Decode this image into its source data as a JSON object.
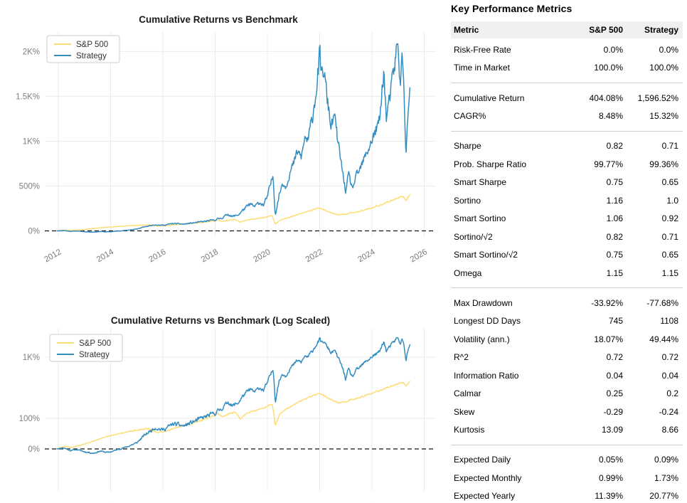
{
  "panel": {
    "title": "Key Performance Metrics",
    "columns": [
      "Metric",
      "S&P 500",
      "Strategy"
    ],
    "sections": [
      {
        "rows": [
          {
            "label": "Risk-Free Rate",
            "sp500": "0.0%",
            "strategy": "0.0%"
          },
          {
            "label": "Time in Market",
            "sp500": "100.0%",
            "strategy": "100.0%"
          }
        ]
      },
      {
        "rows": [
          {
            "label": "Cumulative Return",
            "sp500": "404.08%",
            "strategy": "1,596.52%"
          },
          {
            "label": "CAGR%",
            "sp500": "8.48%",
            "strategy": "15.32%"
          }
        ]
      },
      {
        "rows": [
          {
            "label": "Sharpe",
            "sp500": "0.82",
            "strategy": "0.71"
          },
          {
            "label": "Prob. Sharpe Ratio",
            "sp500": "99.77%",
            "strategy": "99.36%"
          },
          {
            "label": "Smart Sharpe",
            "sp500": "0.75",
            "strategy": "0.65"
          },
          {
            "label": "Sortino",
            "sp500": "1.16",
            "strategy": "1.0"
          },
          {
            "label": "Smart Sortino",
            "sp500": "1.06",
            "strategy": "0.92"
          },
          {
            "label": "Sortino/√2",
            "sp500": "0.82",
            "strategy": "0.71"
          },
          {
            "label": "Smart Sortino/√2",
            "sp500": "0.75",
            "strategy": "0.65"
          },
          {
            "label": "Omega",
            "sp500": "1.15",
            "strategy": "1.15"
          }
        ]
      },
      {
        "rows": [
          {
            "label": "Max Drawdown",
            "sp500": "-33.92%",
            "strategy": "-77.68%"
          },
          {
            "label": "Longest DD Days",
            "sp500": "745",
            "strategy": "1108"
          },
          {
            "label": "Volatility (ann.)",
            "sp500": "18.07%",
            "strategy": "49.44%"
          },
          {
            "label": "R^2",
            "sp500": "0.72",
            "strategy": "0.72"
          },
          {
            "label": "Information Ratio",
            "sp500": "0.04",
            "strategy": "0.04"
          },
          {
            "label": "Calmar",
            "sp500": "0.25",
            "strategy": "0.2"
          },
          {
            "label": "Skew",
            "sp500": "-0.29",
            "strategy": "-0.24"
          },
          {
            "label": "Kurtosis",
            "sp500": "13.09",
            "strategy": "8.66"
          }
        ]
      },
      {
        "rows": [
          {
            "label": "Expected Daily",
            "sp500": "0.05%",
            "strategy": "0.09%"
          },
          {
            "label": "Expected Monthly",
            "sp500": "0.99%",
            "strategy": "1.73%"
          },
          {
            "label": "Expected Yearly",
            "sp500": "11.39%",
            "strategy": "20.77%"
          }
        ]
      }
    ]
  },
  "chart_data": [
    {
      "type": "line",
      "title": "Cumulative Returns vs Benchmark",
      "scale": "linear",
      "grid": true,
      "legend_position": "upper-left",
      "xlim": [
        2011.5,
        2026.5
      ],
      "ylim": [
        -70,
        2200
      ],
      "xticks": [
        "2012",
        "2014",
        "2016",
        "2018",
        "2020",
        "2022",
        "2024",
        "2026"
      ],
      "yticks": [
        {
          "v": 2000,
          "label": "2K%"
        },
        {
          "v": 1500,
          "label": "1.5K%"
        },
        {
          "v": 1000,
          "label": "1K%"
        },
        {
          "v": 500,
          "label": "500%"
        },
        {
          "v": 0,
          "label": "0%"
        }
      ],
      "zero_line": {
        "style": "dashed",
        "color": "#111111"
      },
      "series": [
        {
          "name": "S&P 500",
          "color": "#fedd78",
          "unit": "cumulative return %",
          "points": [
            [
              2011.95,
              0
            ],
            [
              2012.25,
              9
            ],
            [
              2012.5,
              5
            ],
            [
              2012.8,
              11
            ],
            [
              2013.1,
              19
            ],
            [
              2013.5,
              30
            ],
            [
              2013.9,
              42
            ],
            [
              2014.3,
              50
            ],
            [
              2014.7,
              57
            ],
            [
              2015.1,
              63
            ],
            [
              2015.45,
              67
            ],
            [
              2015.75,
              54
            ],
            [
              2016.05,
              57
            ],
            [
              2016.4,
              66
            ],
            [
              2016.8,
              76
            ],
            [
              2017.2,
              86
            ],
            [
              2017.6,
              97
            ],
            [
              2017.95,
              110
            ],
            [
              2018.1,
              122
            ],
            [
              2018.28,
              104
            ],
            [
              2018.55,
              118
            ],
            [
              2018.75,
              127
            ],
            [
              2018.95,
              98
            ],
            [
              2019.2,
              120
            ],
            [
              2019.5,
              133
            ],
            [
              2019.8,
              146
            ],
            [
              2020.05,
              160
            ],
            [
              2020.18,
              170
            ],
            [
              2020.3,
              76
            ],
            [
              2020.5,
              122
            ],
            [
              2020.7,
              141
            ],
            [
              2020.9,
              156
            ],
            [
              2021.1,
              176
            ],
            [
              2021.4,
              202
            ],
            [
              2021.7,
              227
            ],
            [
              2021.95,
              258
            ],
            [
              2022.1,
              242
            ],
            [
              2022.3,
              216
            ],
            [
              2022.5,
              196
            ],
            [
              2022.75,
              176
            ],
            [
              2022.95,
              186
            ],
            [
              2023.2,
              201
            ],
            [
              2023.45,
              216
            ],
            [
              2023.7,
              231
            ],
            [
              2023.95,
              251
            ],
            [
              2024.2,
              276
            ],
            [
              2024.45,
              302
            ],
            [
              2024.7,
              332
            ],
            [
              2024.9,
              356
            ],
            [
              2025.05,
              376
            ],
            [
              2025.2,
              388
            ],
            [
              2025.3,
              336
            ],
            [
              2025.38,
              372
            ],
            [
              2025.45,
              404.1
            ]
          ]
        },
        {
          "name": "Strategy",
          "color": "#348dc1",
          "unit": "cumulative return %",
          "points": [
            [
              2011.95,
              0
            ],
            [
              2012.2,
              4
            ],
            [
              2012.45,
              -5
            ],
            [
              2012.7,
              -2
            ],
            [
              2013.0,
              -9
            ],
            [
              2013.35,
              -14
            ],
            [
              2013.6,
              -7
            ],
            [
              2013.9,
              -12
            ],
            [
              2014.2,
              -4
            ],
            [
              2014.6,
              6
            ],
            [
              2015.0,
              20
            ],
            [
              2015.3,
              45
            ],
            [
              2015.7,
              70
            ],
            [
              2016.0,
              62
            ],
            [
              2016.4,
              82
            ],
            [
              2016.8,
              75
            ],
            [
              2017.2,
              90
            ],
            [
              2017.6,
              105
            ],
            [
              2018.0,
              122
            ],
            [
              2018.3,
              150
            ],
            [
              2018.5,
              188
            ],
            [
              2018.65,
              158
            ],
            [
              2018.9,
              182
            ],
            [
              2019.1,
              242
            ],
            [
              2019.35,
              298
            ],
            [
              2019.5,
              268
            ],
            [
              2019.7,
              318
            ],
            [
              2019.85,
              288
            ],
            [
              2020.0,
              380
            ],
            [
              2020.15,
              550
            ],
            [
              2020.22,
              620
            ],
            [
              2020.3,
              177
            ],
            [
              2020.45,
              400
            ],
            [
              2020.58,
              540
            ],
            [
              2020.7,
              490
            ],
            [
              2020.85,
              640
            ],
            [
              2021.0,
              745
            ],
            [
              2021.15,
              880
            ],
            [
              2021.3,
              820
            ],
            [
              2021.45,
              1060
            ],
            [
              2021.55,
              985
            ],
            [
              2021.7,
              1235
            ],
            [
              2021.8,
              1430
            ],
            [
              2021.9,
              1660
            ],
            [
              2022.0,
              1930
            ],
            [
              2022.08,
              1705
            ],
            [
              2022.15,
              1800
            ],
            [
              2022.3,
              1445
            ],
            [
              2022.45,
              1150
            ],
            [
              2022.55,
              1295
            ],
            [
              2022.7,
              985
            ],
            [
              2022.85,
              705
            ],
            [
              2023.0,
              430
            ],
            [
              2023.1,
              625
            ],
            [
              2023.25,
              470
            ],
            [
              2023.4,
              605
            ],
            [
              2023.55,
              685
            ],
            [
              2023.7,
              795
            ],
            [
              2023.85,
              905
            ],
            [
              2024.0,
              1015
            ],
            [
              2024.15,
              1115
            ],
            [
              2024.3,
              1235
            ],
            [
              2024.45,
              1800
            ],
            [
              2024.55,
              1255
            ],
            [
              2024.7,
              1495
            ],
            [
              2024.85,
              1805
            ],
            [
              2024.97,
              2085
            ],
            [
              2025.08,
              1705
            ],
            [
              2025.17,
              1935
            ],
            [
              2025.3,
              905
            ],
            [
              2025.45,
              1596.5
            ]
          ]
        }
      ]
    },
    {
      "type": "line",
      "title": "Cumulative Returns vs Benchmark (Log Scaled)",
      "scale": "log",
      "grid": true,
      "legend_position": "upper-left",
      "xlim": [
        2011.5,
        2026.5
      ],
      "xticks": [
        "2012",
        "2014",
        "2016",
        "2018",
        "2020",
        "2022",
        "2024",
        "2026"
      ],
      "yticks": [
        {
          "v": 1000,
          "label": "1K%"
        },
        {
          "v": 100,
          "label": "100%"
        },
        {
          "v": 0,
          "label": "0%"
        }
      ],
      "zero_line": {
        "style": "dashed",
        "color": "#111111"
      },
      "series_same_as_chart_index": 0
    }
  ]
}
